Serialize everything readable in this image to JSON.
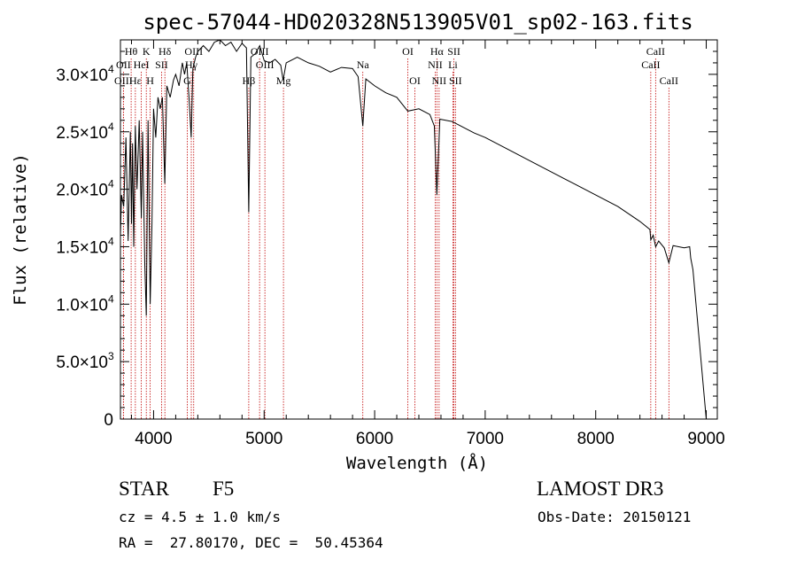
{
  "chart_data": {
    "type": "line",
    "title": "spec-57044-HD020328N513905V01_sp02-163.fits",
    "xlabel": "Wavelength (Å)",
    "ylabel": "Flux (relative)",
    "xlim": [
      3700,
      9100
    ],
    "ylim": [
      0,
      33000
    ],
    "x_ticks": [
      4000,
      5000,
      6000,
      7000,
      8000,
      9000
    ],
    "y_ticks": [
      {
        "value": 0,
        "mantissa": "0",
        "exp": ""
      },
      {
        "value": 5000,
        "mantissa": "5.0×10",
        "exp": "3"
      },
      {
        "value": 10000,
        "mantissa": "1.0×10",
        "exp": "4"
      },
      {
        "value": 15000,
        "mantissa": "1.5×10",
        "exp": "4"
      },
      {
        "value": 20000,
        "mantissa": "2.0×10",
        "exp": "4"
      },
      {
        "value": 25000,
        "mantissa": "2.5×10",
        "exp": "4"
      },
      {
        "value": 30000,
        "mantissa": "3.0×10",
        "exp": "4"
      }
    ],
    "series": [
      {
        "name": "spectrum",
        "x": [
          3700,
          3710,
          3730,
          3750,
          3770,
          3790,
          3800,
          3810,
          3820,
          3835,
          3850,
          3870,
          3889,
          3900,
          3920,
          3934,
          3950,
          3969,
          3985,
          4000,
          4020,
          4040,
          4060,
          4080,
          4101,
          4120,
          4150,
          4180,
          4200,
          4230,
          4260,
          4280,
          4300,
          4320,
          4340,
          4355,
          4380,
          4400,
          4450,
          4500,
          4550,
          4600,
          4650,
          4700,
          4750,
          4800,
          4840,
          4861,
          4880,
          4920,
          4960,
          5000,
          5050,
          5100,
          5150,
          5172,
          5200,
          5300,
          5400,
          5500,
          5600,
          5700,
          5800,
          5850,
          5893,
          5920,
          6000,
          6100,
          6200,
          6300,
          6400,
          6500,
          6540,
          6563,
          6590,
          6700,
          6800,
          6900,
          7000,
          7200,
          7400,
          7600,
          7800,
          8000,
          8200,
          8400,
          8490,
          8498,
          8520,
          8542,
          8570,
          8620,
          8662,
          8700,
          8800,
          8850,
          8860,
          8880,
          9000
        ],
        "y": [
          16000,
          19500,
          18500,
          24500,
          15500,
          25000,
          17000,
          24000,
          15000,
          25500,
          20000,
          26000,
          17500,
          25000,
          13500,
          9000,
          26000,
          10000,
          17000,
          27000,
          24500,
          28000,
          27000,
          28000,
          20500,
          29000,
          28000,
          29500,
          30000,
          29000,
          31000,
          30000,
          31000,
          28000,
          24500,
          30500,
          31500,
          32000,
          32500,
          32000,
          32800,
          33000,
          32500,
          32800,
          32000,
          32700,
          32300,
          18000,
          31500,
          31800,
          32500,
          31200,
          31000,
          31300,
          30800,
          29500,
          31000,
          31500,
          31000,
          30700,
          30200,
          30600,
          30500,
          29800,
          25500,
          29600,
          29000,
          28400,
          28000,
          26800,
          27000,
          26500,
          25500,
          19500,
          26100,
          25900,
          25400,
          24900,
          24500,
          23500,
          22500,
          21500,
          20500,
          19500,
          18500,
          17200,
          16500,
          15600,
          16000,
          15000,
          15500,
          14900,
          13600,
          15100,
          14900,
          15000,
          14000,
          13000,
          0
        ]
      }
    ],
    "lines": [
      {
        "name": "Hθ",
        "x": 3797,
        "row": 1
      },
      {
        "name": "OII",
        "x": 3727,
        "row": 2
      },
      {
        "name": "OIII",
        "x": 3727,
        "row": 3
      },
      {
        "name": "Hε",
        "x": 3835,
        "row": 3
      },
      {
        "name": "K",
        "x": 3934,
        "row": 1
      },
      {
        "name": "HeI",
        "x": 3889,
        "row": 2
      },
      {
        "name": "H",
        "x": 3969,
        "row": 3
      },
      {
        "name": "Hδ",
        "x": 4102,
        "row": 1
      },
      {
        "name": "SII",
        "x": 4072,
        "row": 2
      },
      {
        "name": "OIII",
        "x": 4363,
        "row": 1
      },
      {
        "name": "Hγ",
        "x": 4341,
        "row": 2
      },
      {
        "name": "G",
        "x": 4305,
        "row": 3
      },
      {
        "name": "OIII",
        "x": 4959,
        "row": 1
      },
      {
        "name": "OIII",
        "x": 5007,
        "row": 2
      },
      {
        "name": "Hβ",
        "x": 4861,
        "row": 3
      },
      {
        "name": "Mg",
        "x": 5175,
        "row": 3
      },
      {
        "name": "Na",
        "x": 5893,
        "row": 2
      },
      {
        "name": "OI",
        "x": 6300,
        "row": 1
      },
      {
        "name": "OI",
        "x": 6364,
        "row": 3
      },
      {
        "name": "Hα",
        "x": 6563,
        "row": 1
      },
      {
        "name": "SII",
        "x": 6717,
        "row": 1
      },
      {
        "name": "NII",
        "x": 6548,
        "row": 2
      },
      {
        "name": "Li",
        "x": 6708,
        "row": 2
      },
      {
        "name": "NII",
        "x": 6583,
        "row": 3
      },
      {
        "name": "SII",
        "x": 6731,
        "row": 3
      },
      {
        "name": "CaII",
        "x": 8542,
        "row": 1
      },
      {
        "name": "CaII",
        "x": 8498,
        "row": 2
      },
      {
        "name": "CaII",
        "x": 8662,
        "row": 3
      }
    ]
  },
  "info": {
    "class_label": "STAR",
    "subclass": "F5",
    "survey": "LAMOST DR3",
    "cz": "cz = 4.5 ± 1.0 km/s",
    "obs_date": "Obs-Date: 20150121",
    "coords": "RA =  27.80170, DEC =  50.45364"
  }
}
